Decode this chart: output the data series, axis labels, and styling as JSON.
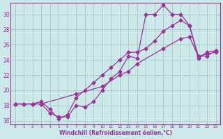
{
  "xlabel": "Windchill (Refroidissement éolien,°C)",
  "bg_color": "#cce8e8",
  "grid_color": "#aacccc",
  "line_color": "#993399",
  "xmin": -0.5,
  "xmax": 23.5,
  "ymin": 15.5,
  "ymax": 31.5,
  "yticks": [
    16,
    18,
    20,
    22,
    24,
    26,
    28,
    30
  ],
  "xticks": [
    0,
    1,
    2,
    3,
    4,
    5,
    6,
    7,
    8,
    9,
    10,
    11,
    12,
    13,
    14,
    15,
    16,
    17,
    18,
    19,
    20,
    21,
    22,
    23
  ],
  "line1_x": [
    0,
    1,
    2,
    3,
    4,
    5,
    6,
    7,
    8,
    9,
    10,
    11,
    12,
    13,
    14,
    15,
    16,
    17,
    18,
    19,
    20,
    21,
    22,
    23
  ],
  "line1_y": [
    18.2,
    18.2,
    18.2,
    18.2,
    17.0,
    16.5,
    16.5,
    18.0,
    17.8,
    18.5,
    20.0,
    21.5,
    22.5,
    24.5,
    24.2,
    30.0,
    30.0,
    31.2,
    30.0,
    30.0,
    28.5,
    24.2,
    25.0,
    25.2
  ],
  "line2_x": [
    0,
    1,
    2,
    3,
    4,
    5,
    6,
    7,
    8,
    9,
    10,
    11,
    12,
    13,
    14,
    15,
    16,
    17,
    18,
    19,
    20,
    21,
    22,
    23
  ],
  "line2_y": [
    18.2,
    18.2,
    18.2,
    18.5,
    17.5,
    16.2,
    16.8,
    19.0,
    20.0,
    21.0,
    22.0,
    23.0,
    24.0,
    25.0,
    25.0,
    25.5,
    26.5,
    27.8,
    28.5,
    29.2,
    28.5,
    24.5,
    24.5,
    25.2
  ],
  "line3_x": [
    0,
    2,
    3,
    7,
    10,
    12,
    13,
    14,
    17,
    19,
    20,
    21,
    22,
    23
  ],
  "line3_y": [
    18.2,
    18.2,
    18.2,
    19.5,
    20.5,
    22.0,
    22.5,
    23.5,
    25.5,
    26.8,
    27.0,
    24.5,
    24.8,
    25.0
  ],
  "marker": "D",
  "markersize": 2.5
}
